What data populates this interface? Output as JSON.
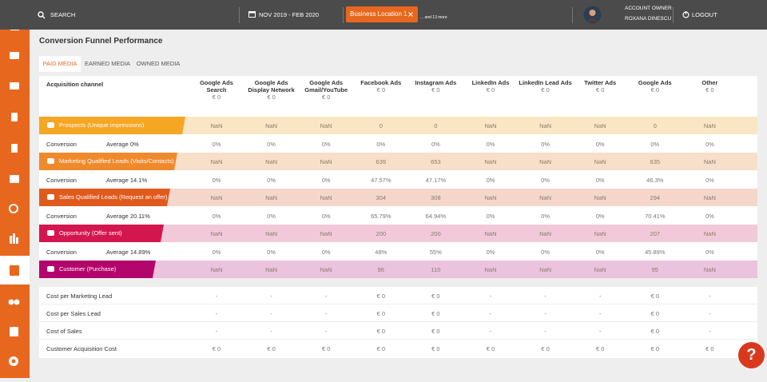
{
  "topbar": {
    "search": "SEARCH",
    "date_range": "NOV 2019 - FEB 2020",
    "location": "Business Location 1",
    "more": "... and 13 more",
    "account_role": "ACCOUNT OWNER",
    "account_name": "ROXANA DINESCU",
    "logout": "LOGOUT"
  },
  "page": {
    "title": "Conversion Funnel Performance",
    "tabs": [
      "PAID MEDIA",
      "EARNED MEDIA",
      "OWNED MEDIA"
    ]
  },
  "table": {
    "header": "Acquisition channel",
    "columns": [
      {
        "name": "Google Ads Search",
        "spend": "€ 0"
      },
      {
        "name": "Google Ads Display Network",
        "spend": "€ 0"
      },
      {
        "name": "Google Ads Gmail/YouTube",
        "spend": "€ 0"
      },
      {
        "name": "Facebook Ads",
        "spend": "€ 0"
      },
      {
        "name": "Instagram Ads",
        "spend": "€ 0"
      },
      {
        "name": "LinkedIn Ads",
        "spend": "€ 0"
      },
      {
        "name": "LinkedIn Lead Ads",
        "spend": "€ 0"
      },
      {
        "name": "Twitter Ads",
        "spend": "€ 0"
      },
      {
        "name": "Google Ads",
        "spend": "€ 0"
      },
      {
        "name": "Other",
        "spend": "€ 0"
      }
    ],
    "funnel": [
      {
        "stage": "Prospects (Unique impressions)",
        "values": [
          "NaN",
          "NaN",
          "NaN",
          "0",
          "0",
          "NaN",
          "NaN",
          "NaN",
          "0",
          "NaN"
        ],
        "conversion": {
          "label": "Conversion",
          "average": "Average 0%",
          "values": [
            "0%",
            "0%",
            "0%",
            "0%",
            "0%",
            "0%",
            "0%",
            "0%",
            "0%",
            "0%"
          ]
        }
      },
      {
        "stage": "Marketing Qualified Leads (Visits/Contacts)",
        "values": [
          "NaN",
          "NaN",
          "NaN",
          "639",
          "653",
          "NaN",
          "NaN",
          "NaN",
          "635",
          "NaN"
        ],
        "conversion": {
          "label": "Conversion",
          "average": "Average 14.1%",
          "values": [
            "0%",
            "0%",
            "0%",
            "47.57%",
            "47.17%",
            "0%",
            "0%",
            "0%",
            "46.3%",
            "0%"
          ]
        }
      },
      {
        "stage": "Sales Qualified Leads (Request an offer)",
        "values": [
          "NaN",
          "NaN",
          "NaN",
          "304",
          "308",
          "NaN",
          "NaN",
          "NaN",
          "294",
          "NaN"
        ],
        "conversion": {
          "label": "Conversion",
          "average": "Average 20.11%",
          "values": [
            "0%",
            "0%",
            "0%",
            "65.79%",
            "64.94%",
            "0%",
            "0%",
            "0%",
            "70.41%",
            "0%"
          ]
        }
      },
      {
        "stage": "Opportunity (Offer sent)",
        "values": [
          "NaN",
          "NaN",
          "NaN",
          "200",
          "200",
          "NaN",
          "NaN",
          "NaN",
          "207",
          "NaN"
        ],
        "conversion": {
          "label": "Conversion",
          "average": "Average 14.89%",
          "values": [
            "0%",
            "0%",
            "0%",
            "48%",
            "55%",
            "0%",
            "0%",
            "0%",
            "45.89%",
            "0%"
          ]
        }
      },
      {
        "stage": "Customer (Purchase)",
        "values": [
          "NaN",
          "NaN",
          "NaN",
          "96",
          "110",
          "NaN",
          "NaN",
          "NaN",
          "95",
          "NaN"
        ]
      }
    ],
    "costs": [
      {
        "label": "Cost per Marketing Lead",
        "values": [
          "-",
          "-",
          "-",
          "€ 0",
          "€ 0",
          "-",
          "-",
          "-",
          "€ 0",
          "-"
        ]
      },
      {
        "label": "Cost per Sales Lead",
        "values": [
          "-",
          "-",
          "-",
          "€ 0",
          "€ 0",
          "-",
          "-",
          "-",
          "€ 0",
          "-"
        ]
      },
      {
        "label": "Cost of Sales",
        "values": [
          "-",
          "-",
          "-",
          "€ 0",
          "€ 0",
          "-",
          "-",
          "-",
          "€ 0",
          "-"
        ]
      },
      {
        "label": "Customer Acquisition Cost",
        "values": [
          "€ 0",
          "€ 0",
          "€ 0",
          "€ 0",
          "€ 0",
          "€ 0",
          "€ 0",
          "€ 0",
          "€ 0",
          "€ 0"
        ]
      }
    ]
  },
  "help": "?"
}
